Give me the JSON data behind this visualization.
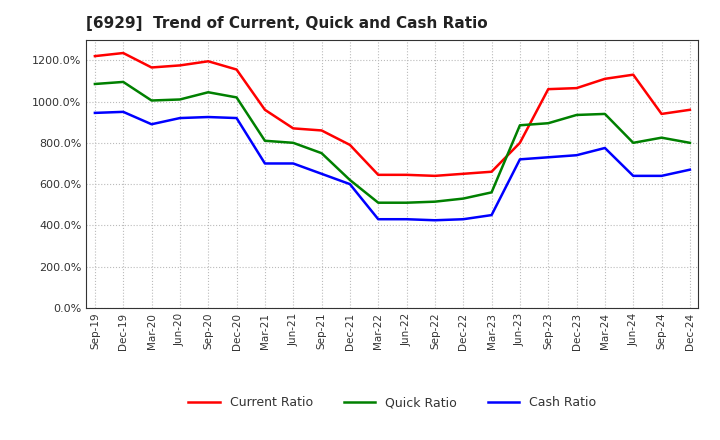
{
  "title": "[6929]  Trend of Current, Quick and Cash Ratio",
  "x_labels": [
    "Sep-19",
    "Dec-19",
    "Mar-20",
    "Jun-20",
    "Sep-20",
    "Dec-20",
    "Mar-21",
    "Jun-21",
    "Sep-21",
    "Dec-21",
    "Mar-22",
    "Jun-22",
    "Sep-22",
    "Dec-22",
    "Mar-23",
    "Jun-23",
    "Sep-23",
    "Dec-23",
    "Mar-24",
    "Jun-24",
    "Sep-24",
    "Dec-24"
  ],
  "current_ratio": [
    1220,
    1235,
    1165,
    1175,
    1195,
    1155,
    960,
    870,
    860,
    790,
    645,
    645,
    640,
    650,
    660,
    800,
    1060,
    1065,
    1110,
    1130,
    940,
    960
  ],
  "quick_ratio": [
    1085,
    1095,
    1005,
    1010,
    1045,
    1020,
    810,
    800,
    750,
    620,
    510,
    510,
    515,
    530,
    560,
    885,
    895,
    935,
    940,
    800,
    825,
    800
  ],
  "cash_ratio": [
    945,
    950,
    890,
    920,
    925,
    920,
    700,
    700,
    650,
    600,
    430,
    430,
    425,
    430,
    450,
    720,
    730,
    740,
    775,
    640,
    640,
    670
  ],
  "current_color": "#FF0000",
  "quick_color": "#008000",
  "cash_color": "#0000FF",
  "background_color": "#FFFFFF",
  "plot_bg_color": "#FFFFFF",
  "grid_color": "#BBBBBB",
  "ylim": [
    0,
    1300
  ],
  "ytick_values": [
    0,
    200,
    400,
    600,
    800,
    1000,
    1200
  ],
  "ytick_labels": [
    "0.0%",
    "200.0%",
    "400.0%",
    "600.0%",
    "800.0%",
    "1000.0%",
    "1200.0%"
  ],
  "legend_labels": [
    "Current Ratio",
    "Quick Ratio",
    "Cash Ratio"
  ],
  "line_width": 1.8
}
